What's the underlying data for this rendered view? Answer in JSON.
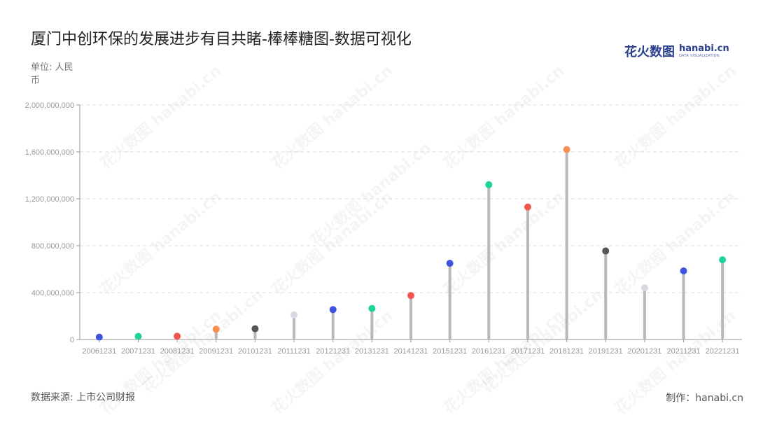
{
  "header": {
    "title": "厦门中创环保的发展进步有目共睹-棒棒糖图-数据可视化",
    "unit": "单位: 人民币"
  },
  "logo": {
    "cn": "花火数图",
    "en": "hanabi.cn",
    "sub": "DATA VISUALIZATION"
  },
  "watermark_text": "花火数图 hanabi.cn",
  "footer": {
    "source": "数据来源: 上市公司财报",
    "credit": "制作：hanabi.cn"
  },
  "chart_data": {
    "type": "lollipop",
    "categories": [
      "20061231",
      "20071231",
      "20081231",
      "20091231",
      "20101231",
      "20111231",
      "20121231",
      "20131231",
      "20141231",
      "20151231",
      "20161231",
      "20171231",
      "20181231",
      "20191231",
      "20201231",
      "20211231",
      "20221231"
    ],
    "values": [
      20000000,
      27000000,
      28000000,
      88000000,
      92000000,
      210000000,
      255000000,
      265000000,
      375000000,
      650000000,
      1320000000,
      1130000000,
      1620000000,
      755000000,
      440000000,
      585000000,
      680000000
    ],
    "colors": [
      "#3b55e0",
      "#1ed39b",
      "#f2574f",
      "#f6914f",
      "#555559",
      "#d6d9e0",
      "#3b55e0",
      "#1ed39b",
      "#f2574f",
      "#3b55e0",
      "#1ed39b",
      "#f2574f",
      "#f6914f",
      "#555559",
      "#d6d9e0",
      "#3b55e0",
      "#1ed39b"
    ],
    "y_ticks": [
      "0",
      "400,000,000",
      "800,000,000",
      "1,200,000,000",
      "1,600,000,000",
      "2,000,000,000"
    ],
    "ylim": [
      0,
      2000000000
    ],
    "grid": true,
    "stem_color": "#b8b8b8"
  }
}
